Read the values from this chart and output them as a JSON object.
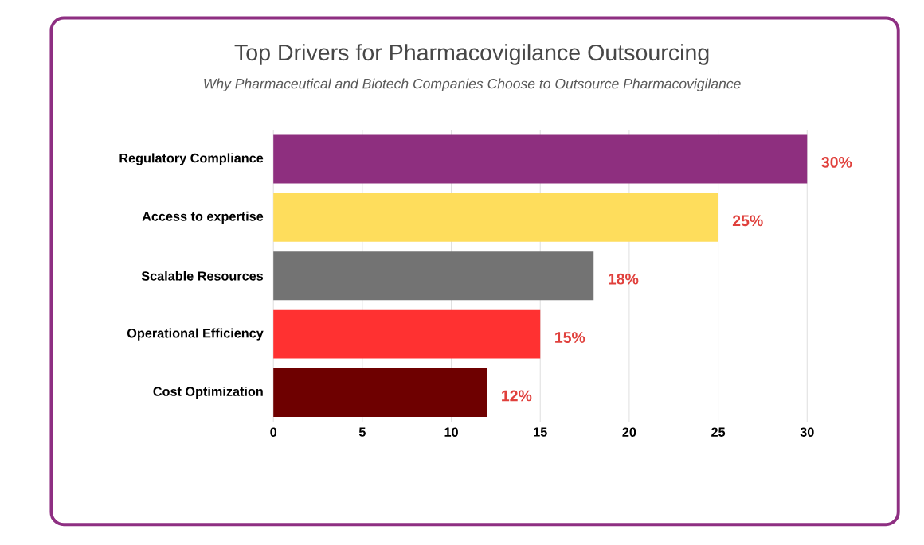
{
  "chart_data": {
    "type": "bar",
    "orientation": "horizontal",
    "title": "Top Drivers for Pharmacovigilance Outsourcing",
    "subtitle": "Why Pharmaceutical and Biotech Companies Choose to Outsource Pharmacovigilance",
    "categories": [
      "Regulatory Compliance",
      "Access to expertise",
      "Scalable Resources",
      "Operational Efficiency",
      "Cost Optimization"
    ],
    "values": [
      30,
      25,
      18,
      15,
      12
    ],
    "colors": [
      "#8e2f7f",
      "#fedd5c",
      "#737373",
      "#ff3131",
      "#6e0000"
    ],
    "value_labels": [
      "30%",
      "25%",
      "18%",
      "15%",
      "12%"
    ],
    "xlim": [
      0,
      30
    ],
    "xticks": [
      0,
      5,
      10,
      15,
      20,
      25,
      30
    ],
    "grid": "x"
  }
}
